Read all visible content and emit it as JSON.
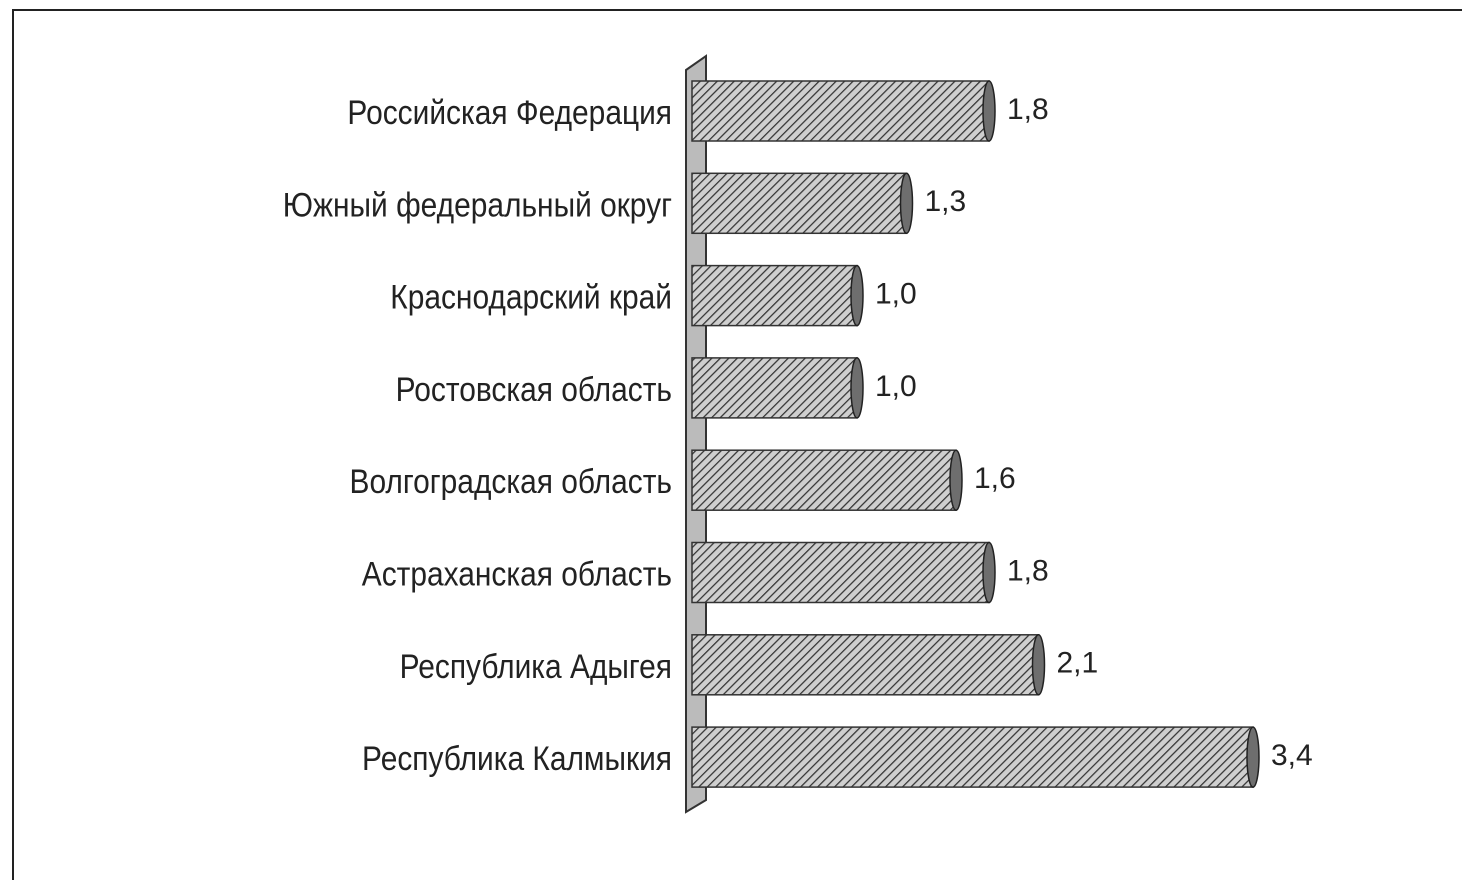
{
  "chart_data": {
    "type": "bar",
    "orientation": "horizontal",
    "categories": [
      "Российская Федерация",
      "Южный федеральный округ",
      "Краснодарский край",
      "Ростовская область",
      "Волгоградская область",
      "Астраханская область",
      "Республика Адыгея",
      "Республика Калмыкия"
    ],
    "values": [
      1.8,
      1.3,
      1.0,
      1.0,
      1.6,
      1.8,
      2.1,
      3.4
    ],
    "value_labels": [
      "1,8",
      "1,3",
      "1,0",
      "1,0",
      "1,6",
      "1,8",
      "2,1",
      "3,4"
    ],
    "color": "#6e6e6e"
  }
}
